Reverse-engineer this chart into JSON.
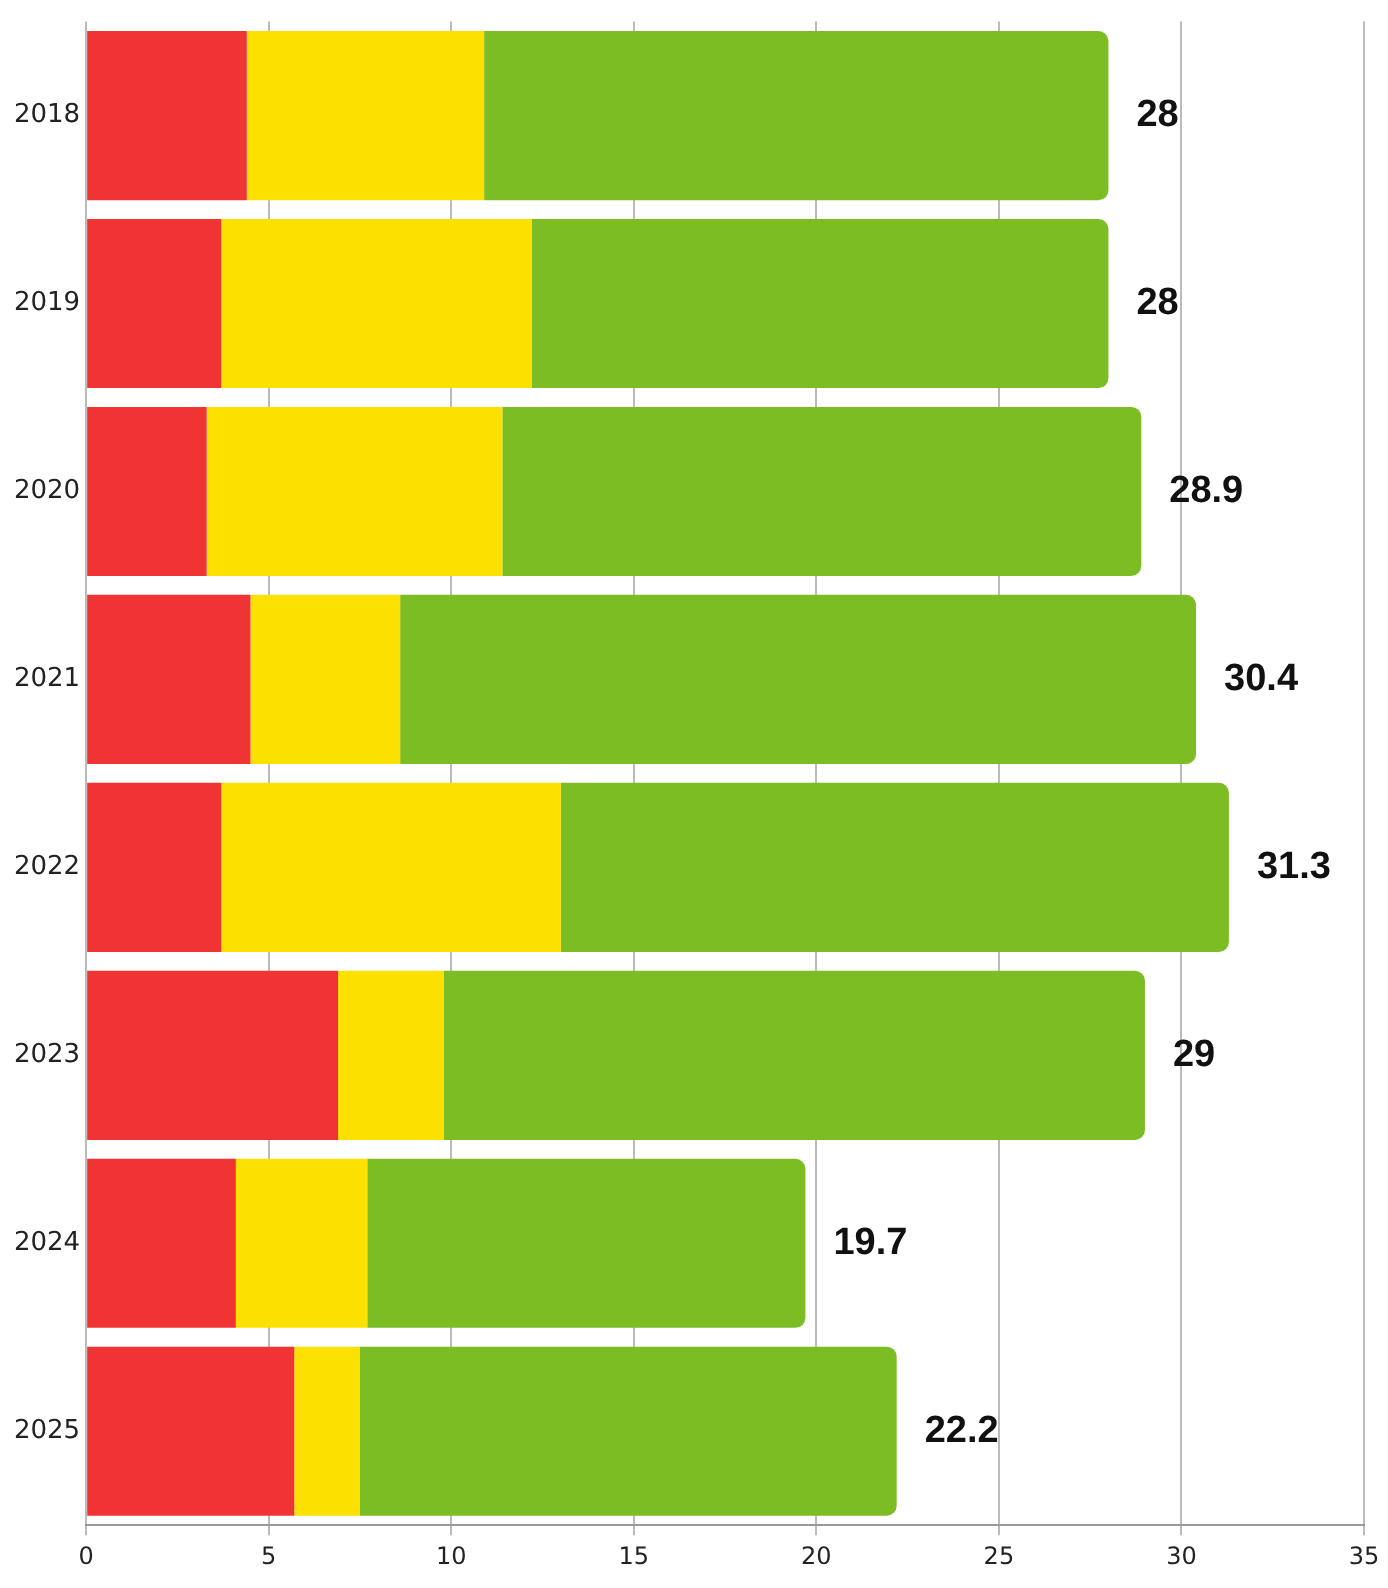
{
  "chart_data": {
    "type": "bar",
    "orientation": "horizontal",
    "stacked": true,
    "categories": [
      "2018",
      "2019",
      "2020",
      "2021",
      "2022",
      "2023",
      "2024",
      "2025"
    ],
    "series": [
      {
        "color": "#f03434",
        "values": [
          4.4,
          3.7,
          3.3,
          4.5,
          3.7,
          6.9,
          4.1,
          5.7
        ]
      },
      {
        "color": "#fce000",
        "values": [
          6.5,
          8.5,
          8.1,
          4.1,
          9.3,
          2.9,
          3.6,
          1.8
        ]
      },
      {
        "color": "#7dbd24",
        "values": [
          17.1,
          15.8,
          17.5,
          21.8,
          18.3,
          19.2,
          12.0,
          14.7
        ]
      }
    ],
    "totals": [
      "28",
      "28",
      "28.9",
      "30.4",
      "31.3",
      "29",
      "19.7",
      "22.2"
    ],
    "xlim": [
      0,
      35
    ],
    "xticks": [
      0,
      5,
      10,
      15,
      20,
      25,
      30,
      35
    ],
    "grid": "x",
    "legend": false
  }
}
